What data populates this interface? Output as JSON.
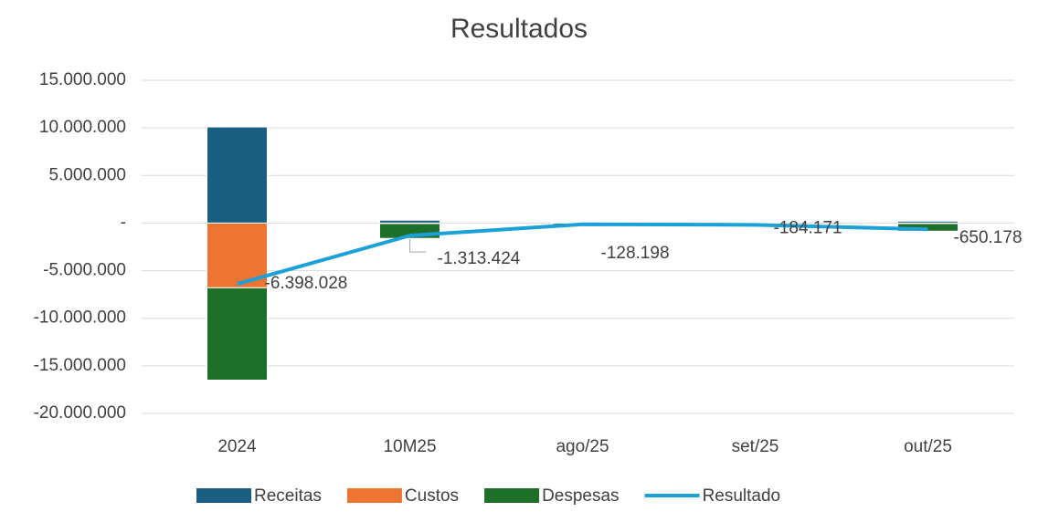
{
  "chart_data": {
    "type": "bar",
    "stacked": true,
    "title": "Resultados",
    "categories": [
      "2024",
      "10M25",
      "ago/25",
      "set/25",
      "out/25"
    ],
    "series": [
      {
        "name": "Receitas",
        "type": "bar",
        "color": "#1a5e82",
        "values": [
          10100000,
          300000,
          30000,
          30000,
          200000
        ]
      },
      {
        "name": "Custos",
        "type": "bar",
        "color": "#ed7431",
        "values": [
          -6800000,
          -50000,
          -10000,
          -10000,
          -50000
        ]
      },
      {
        "name": "Despesas",
        "type": "bar",
        "color": "#1e6f2a",
        "values": [
          -9700000,
          -1560000,
          -150000,
          -200000,
          -800000
        ]
      },
      {
        "name": "Resultado",
        "type": "line",
        "color": "#1ba1d8",
        "values": [
          -6398028,
          -1313424,
          -128198,
          -184171,
          -650178
        ],
        "value_labels": [
          "-6.398.028",
          "-1.313.424",
          "-128.198",
          "-184.171",
          "-650.178"
        ]
      }
    ],
    "ylim": [
      -20000000,
      15000000
    ],
    "yticks": [
      {
        "value": -20000000,
        "label": "-20.000.000"
      },
      {
        "value": -15000000,
        "label": "-15.000.000"
      },
      {
        "value": -10000000,
        "label": "-10.000.000"
      },
      {
        "value": -5000000,
        "label": "-5.000.000"
      },
      {
        "value": 0,
        "label": "-"
      },
      {
        "value": 5000000,
        "label": "5.000.000"
      },
      {
        "value": 10000000,
        "label": "10.000.000"
      },
      {
        "value": 15000000,
        "label": "15.000.000"
      }
    ],
    "grid": true,
    "legend": "bottom"
  }
}
